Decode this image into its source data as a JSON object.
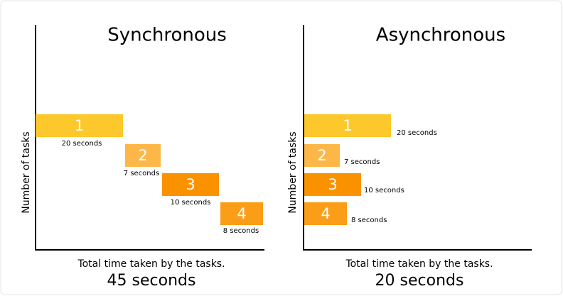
{
  "panels": [
    {
      "title": "Synchronous",
      "y_axis_label": "Number of tasks",
      "tasks": [
        {
          "label": "1",
          "duration": "20 seconds"
        },
        {
          "label": "2",
          "duration": "7 seconds"
        },
        {
          "label": "3",
          "duration": "10 seconds"
        },
        {
          "label": "4",
          "duration": "8 seconds"
        }
      ],
      "footer": "Total time taken by the tasks.",
      "total": "45 seconds"
    },
    {
      "title": "Asynchronous",
      "y_axis_label": "Number of tasks",
      "tasks": [
        {
          "label": "1",
          "duration": "20 seconds"
        },
        {
          "label": "2",
          "duration": "7 seconds"
        },
        {
          "label": "3",
          "duration": "10 seconds"
        },
        {
          "label": "4",
          "duration": "8 seconds"
        }
      ],
      "footer": "Total time taken by the tasks.",
      "total": "20 seconds"
    }
  ]
}
